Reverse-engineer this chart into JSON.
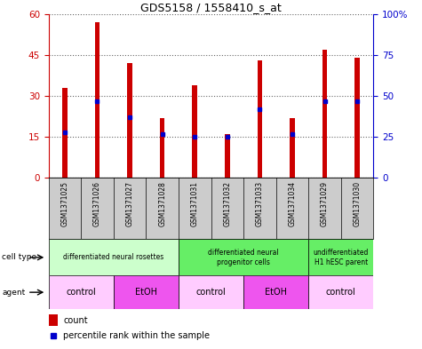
{
  "title": "GDS5158 / 1558410_s_at",
  "samples": [
    "GSM1371025",
    "GSM1371026",
    "GSM1371027",
    "GSM1371028",
    "GSM1371031",
    "GSM1371032",
    "GSM1371033",
    "GSM1371034",
    "GSM1371029",
    "GSM1371030"
  ],
  "counts": [
    33,
    57,
    42,
    22,
    34,
    16,
    43,
    22,
    47,
    44
  ],
  "percentile_ranks": [
    28,
    47,
    37,
    27,
    25,
    25,
    42,
    27,
    47,
    47
  ],
  "ylim_left": [
    0,
    60
  ],
  "ylim_right": [
    0,
    100
  ],
  "yticks_left": [
    0,
    15,
    30,
    45,
    60
  ],
  "yticks_right": [
    0,
    25,
    50,
    75,
    100
  ],
  "ytick_labels_right": [
    "0",
    "25",
    "50",
    "75",
    "100%"
  ],
  "bar_color": "#cc0000",
  "percentile_color": "#0000cc",
  "cell_type_groups": [
    {
      "label": "differentiated neural rosettes",
      "start": 0,
      "end": 4,
      "color": "#ccffcc"
    },
    {
      "label": "differentiated neural\nprogenitor cells",
      "start": 4,
      "end": 8,
      "color": "#66ee66"
    },
    {
      "label": "undifferentiated\nH1 hESC parent",
      "start": 8,
      "end": 10,
      "color": "#66ee66"
    }
  ],
  "agent_groups": [
    {
      "label": "control",
      "start": 0,
      "end": 2,
      "color": "#ffccff"
    },
    {
      "label": "EtOH",
      "start": 2,
      "end": 4,
      "color": "#ee55ee"
    },
    {
      "label": "control",
      "start": 4,
      "end": 6,
      "color": "#ffccff"
    },
    {
      "label": "EtOH",
      "start": 6,
      "end": 8,
      "color": "#ee55ee"
    },
    {
      "label": "control",
      "start": 8,
      "end": 10,
      "color": "#ffccff"
    }
  ],
  "legend_items": [
    {
      "label": "count",
      "color": "#cc0000"
    },
    {
      "label": "percentile rank within the sample",
      "color": "#0000cc"
    }
  ],
  "row_label_cell_type": "cell type",
  "row_label_agent": "agent",
  "sample_area_bg": "#cccccc",
  "bar_width": 0.15
}
